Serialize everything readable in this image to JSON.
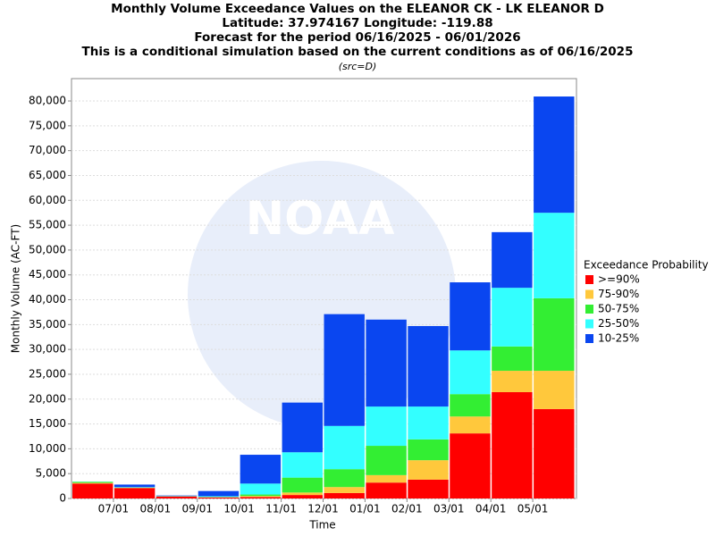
{
  "chart_data": {
    "type": "stacked_bar",
    "title": "Monthly Volume Exceedance Values on the ELEANOR CK - LK ELEANOR D",
    "subtitles": [
      "Latitude: 37.974167 Longitude: -119.88",
      "Forecast for the period 06/16/2025 - 06/01/2026",
      "This is a conditional simulation based on the current conditions as of 06/16/2025"
    ],
    "source": "(src=D)",
    "watermark": "NOAA",
    "x_label": "Time",
    "y_label": "Monthly Volume (AC-FT)",
    "legend_title": "Exceedance Probability",
    "legend": "right",
    "xticks": [
      "07/01",
      "08/01",
      "09/01",
      "10/01",
      "11/01",
      "12/01",
      "01/01",
      "02/01",
      "03/01",
      "04/01",
      "05/01"
    ],
    "ylim": [
      0,
      84500
    ],
    "yticks": [
      0,
      {
        "value": 5000,
        "label": "5,000"
      },
      {
        "value": 10000,
        "label": "10,000"
      },
      {
        "value": 15000,
        "label": "15,000"
      },
      {
        "value": 20000,
        "label": "20,000"
      },
      {
        "value": 25000,
        "label": "25,000"
      },
      {
        "value": 30000,
        "label": "30,000"
      },
      {
        "value": 35000,
        "label": "35,000"
      },
      {
        "value": 40000,
        "label": "40,000"
      },
      {
        "value": 45000,
        "label": "45,000"
      },
      {
        "value": 50000,
        "label": "50,000"
      },
      {
        "value": 55000,
        "label": "55,000"
      },
      {
        "value": 60000,
        "label": "60,000"
      },
      {
        "value": 65000,
        "label": "65,000"
      },
      {
        "value": 70000,
        "label": "70,000"
      },
      {
        "value": 75000,
        "label": "75,000"
      },
      {
        "value": 80000,
        "label": "80,000"
      }
    ],
    "grid": true,
    "series": [
      {
        "name": ">=90%",
        "color": "#ff0000",
        "values": [
          3000,
          2100,
          400,
          200,
          300,
          700,
          1100,
          3200,
          3800,
          13100,
          21400,
          18000
        ]
      },
      {
        "name": "75-90%",
        "color": "#ffc83c",
        "values": [
          150,
          50,
          20,
          50,
          200,
          500,
          1200,
          1500,
          3900,
          3400,
          4300,
          7700
        ]
      },
      {
        "name": "50-75%",
        "color": "#33ee33",
        "values": [
          200,
          50,
          30,
          50,
          300,
          3000,
          3600,
          5900,
          4200,
          4500,
          4900,
          14600
        ]
      },
      {
        "name": "25-50%",
        "color": "#33ffff",
        "values": [
          50,
          100,
          50,
          150,
          2200,
          5100,
          8700,
          7900,
          6600,
          8800,
          11800,
          17200
        ]
      },
      {
        "name": "10-25%",
        "color": "#0a46f0",
        "values": [
          0,
          500,
          100,
          1050,
          5800,
          10000,
          22500,
          17500,
          16200,
          13700,
          11200,
          23400
        ]
      }
    ]
  }
}
